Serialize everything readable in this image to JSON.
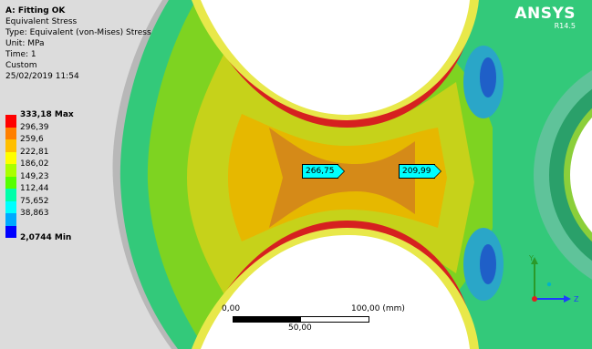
{
  "brand": {
    "name": "ANSYS",
    "version": "R14.5"
  },
  "info": {
    "title": "A: Fitting OK",
    "result": "Equivalent Stress",
    "type": "Type: Equivalent (von-Mises) Stress",
    "unit": "Unit: MPa",
    "time": "Time: 1",
    "custom": "Custom",
    "datetime": "25/02/2019 11:54"
  },
  "legend": {
    "max_label": "333,18 Max",
    "levels": [
      "296,39",
      "259,6",
      "222,81",
      "186,02",
      "149,23",
      "112,44",
      "75,652",
      "38,863"
    ],
    "min_label": "2,0744 Min",
    "colors": [
      "#ff0000",
      "#ff7f00",
      "#ffbf00",
      "#ffff00",
      "#aaff00",
      "#55ff00",
      "#00ffaa",
      "#00ffff",
      "#00aaff",
      "#0000ff"
    ]
  },
  "probes": [
    {
      "value": "266,75"
    },
    {
      "value": "209,99"
    }
  ],
  "scale": {
    "start": "0,00",
    "end": "100,00 (mm)",
    "mid": "50,00"
  },
  "triad": {
    "y": "Y",
    "z": "Z"
  }
}
